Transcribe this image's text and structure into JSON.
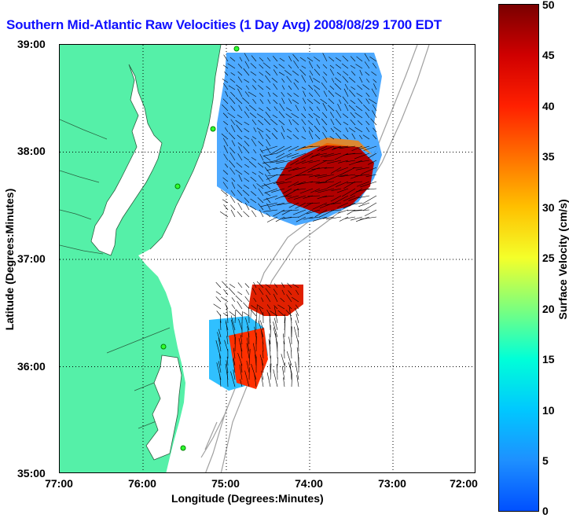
{
  "title": "Southern Mid-Atlantic Raw Velocities (1 Day Avg) 2008/08/29 1700 EDT",
  "axes": {
    "xlabel": "Longitude (Degrees:Minutes)",
    "ylabel": "Latitude (Degrees:Minutes)",
    "x_ticks": [
      "77:00",
      "76:00",
      "75:00",
      "74:00",
      "73:00",
      "72:00"
    ],
    "y_ticks": [
      "39:00",
      "38:00",
      "37:00",
      "36:00",
      "35:00"
    ],
    "x_range": [
      -77,
      -72
    ],
    "y_range": [
      35,
      39
    ]
  },
  "colorbar": {
    "label": "Surface Velocity (cm/s)",
    "ticks": [
      "50",
      "45",
      "40",
      "35",
      "30",
      "25",
      "20",
      "15",
      "10",
      "5",
      "0"
    ],
    "range": [
      0,
      50
    ]
  },
  "colors": {
    "land": "#55f0a8",
    "title": "#1010ff",
    "vectors": "#000000",
    "bathymetry": "#a0a0a0"
  }
}
